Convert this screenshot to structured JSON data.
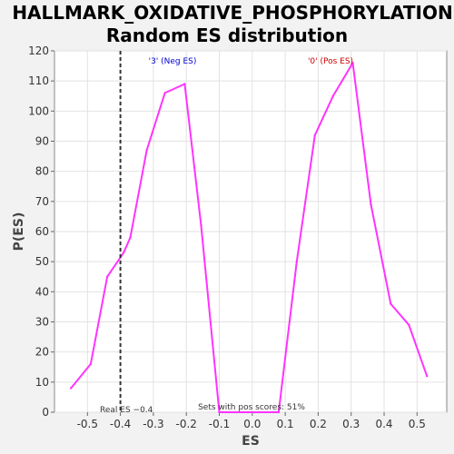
{
  "chart_data": {
    "type": "line",
    "title_lines": [
      "HALLMARK_OXIDATIVE_PHOSPHORYLATION:",
      "Random ES distribution"
    ],
    "xlabel": "ES",
    "ylabel": "P(ES)",
    "xlim": [
      -0.6,
      0.59
    ],
    "ylim": [
      0,
      120
    ],
    "xticks": [
      -0.5,
      -0.4,
      -0.3,
      -0.2,
      -0.1,
      0.0,
      0.1,
      0.2,
      0.3,
      0.4,
      0.5
    ],
    "xtick_labels": [
      "-0.5",
      "-0.4",
      "-0.3",
      "-0.2",
      "-0.1",
      "0.0",
      "0.1",
      "0.2",
      "0.3",
      "0.4",
      "0.5"
    ],
    "yticks": [
      0,
      10,
      20,
      30,
      40,
      50,
      60,
      70,
      80,
      90,
      100,
      110,
      120
    ],
    "ytick_labels": [
      "0",
      "10",
      "20",
      "30",
      "40",
      "50",
      "60",
      "70",
      "80",
      "90",
      "100",
      "110",
      "120"
    ],
    "grid": true,
    "series": [
      {
        "color": "#ff33ff",
        "x": [
          -0.55,
          -0.49,
          -0.44,
          -0.39,
          -0.37,
          -0.32,
          -0.265,
          -0.205,
          -0.155,
          -0.1,
          -0.05,
          0.0,
          0.08,
          0.135,
          0.19,
          0.245,
          0.305,
          0.36,
          0.42,
          0.475,
          0.53
        ],
        "y": [
          8,
          16,
          45,
          53,
          58,
          87,
          106,
          109,
          62,
          0,
          0,
          0,
          0,
          50,
          92,
          105,
          116,
          69,
          36,
          29,
          12
        ]
      }
    ],
    "real_es": -0.4,
    "real_es_color": "#333333",
    "annotations": {
      "neg_label": "'3' (Neg ES)",
      "neg_color": "#0000cc",
      "pos_label": "'0' (Pos ES)",
      "pos_color": "#cc0000",
      "real_es_label": "Real ES −0.4",
      "pos_scores_label": "Sets with pos scores: 51%"
    }
  }
}
